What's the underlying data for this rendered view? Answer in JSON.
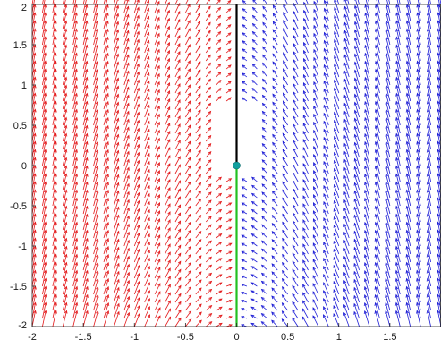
{
  "chart_data": {
    "type": "quiver",
    "title": "",
    "xlabel": "",
    "ylabel": "",
    "xlim": [
      -2,
      2
    ],
    "ylim": [
      -2,
      2
    ],
    "grid": false,
    "legend": "none",
    "x_ticks": [
      "-2",
      "-1.5",
      "-1",
      "-0.5",
      "0",
      "0.5",
      "1",
      "1.5"
    ],
    "x_tick_values": [
      -2,
      -1.5,
      -1,
      -0.5,
      0,
      0.5,
      1,
      1.5
    ],
    "y_ticks": [
      "-2",
      "-1.5",
      "-1",
      "-0.5",
      "0",
      "0.5",
      "1",
      "1.5",
      "2"
    ],
    "y_tick_values": [
      -2,
      -1.5,
      -1,
      -0.5,
      0,
      0.5,
      1,
      1.5,
      2
    ],
    "series": [
      {
        "region": "left half-plane x < 0",
        "color": "#e31a1c",
        "field": "mirror of right-half field",
        "grid_spacing": 0.1
      },
      {
        "region": "right half-plane x > 0",
        "color": "#1f1fd6",
        "field": "vectors point up-left, steepening away from the y-axis",
        "grid_spacing": 0.1
      }
    ],
    "segments": [
      {
        "color": "#000000",
        "from": [
          0,
          0
        ],
        "to": [
          0,
          2
        ]
      },
      {
        "color": "#22c022",
        "from": [
          0,
          -2
        ],
        "to": [
          0,
          0
        ]
      }
    ],
    "points": [
      {
        "x": 0,
        "y": 0,
        "color": "#129f9f"
      }
    ],
    "colors": {
      "left_field": "#e31a1c",
      "right_field": "#1f1fd6",
      "upper_segment": "#000000",
      "lower_segment": "#22c022",
      "point": "#129f9f"
    }
  }
}
